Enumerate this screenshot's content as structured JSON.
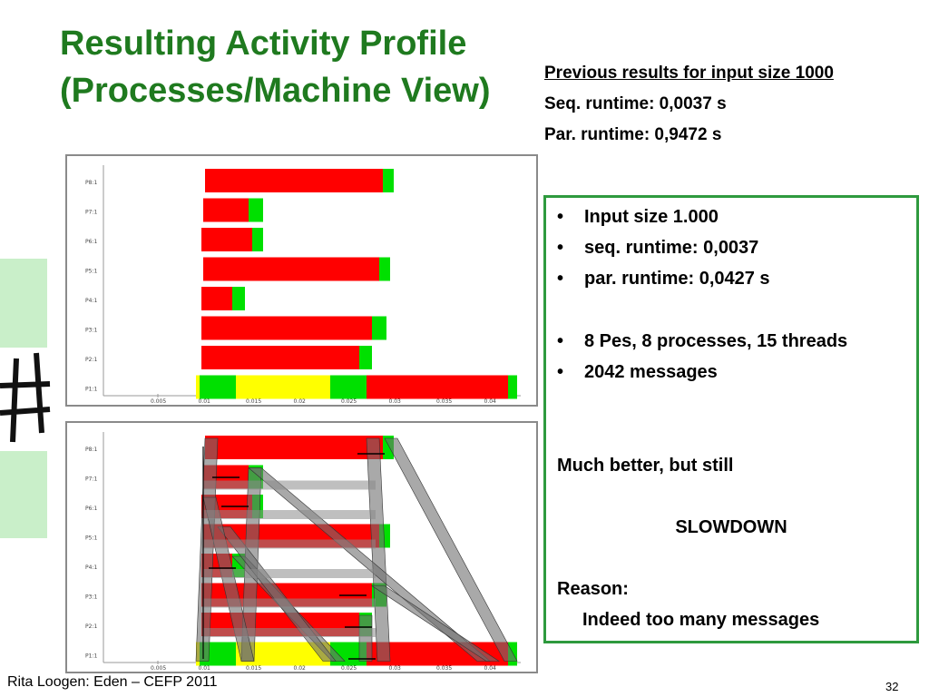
{
  "slide": {
    "title_line1": "Resulting Activity Profile",
    "title_line2": "(Processes/Machine View)",
    "footer": "Rita Loogen: Eden – CEFP 2011",
    "page_number": "32"
  },
  "previous": {
    "heading": "Previous results for input size 1000",
    "seq": "Seq. runtime:  0,0037 s",
    "par": "Par.  runtime:  0,9472 s"
  },
  "box": {
    "bullets": [
      {
        "text": "Input size 1.000",
        "color": "#000000"
      },
      {
        "text": "seq. runtime: 0,0037",
        "color": "#000000"
      },
      {
        "text": "par. runtime:  0,0427 s",
        "color": "#000000"
      },
      {
        "text": "8 Pes, 8 processes, 15 threads",
        "color": "#000000"
      },
      {
        "text": "2042 messages",
        "color": "#e8131b"
      }
    ],
    "line_better": "Much better, but still",
    "line_slowdown": "SLOWDOWN",
    "line_reason": "Reason:",
    "line_indeed": "Indeed too many messages"
  },
  "charts": {
    "row_labels": [
      "P8:1",
      "P7:1",
      "P6:1",
      "P5:1",
      "P4:1",
      "P3:1",
      "P2:1",
      "P1:1"
    ],
    "tick_labels": [
      "0.005",
      "0.01",
      "0.015",
      "0.02",
      "0.025",
      "0.03",
      "0.035",
      "0.04"
    ]
  },
  "colors": {
    "title_green": "#1f7a1f",
    "box_border": "#2e9a3e",
    "running": "#ff0000",
    "idle": "#00e000",
    "runnable": "#ffff00",
    "message_band": "#707070"
  }
}
